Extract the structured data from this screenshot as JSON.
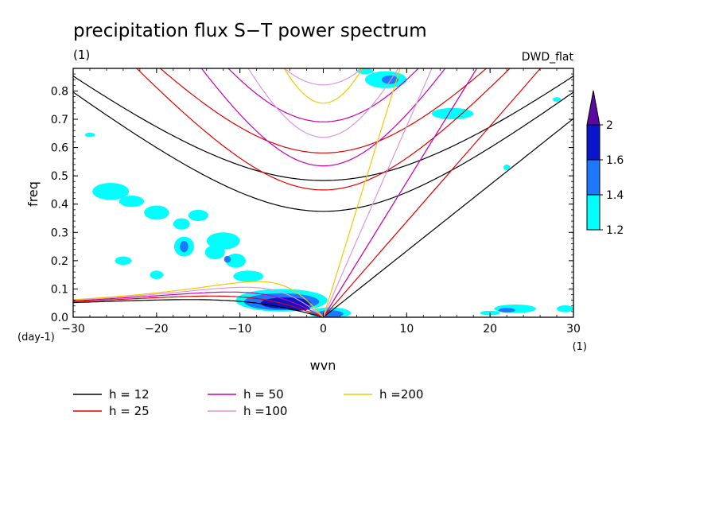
{
  "chart_data": {
    "type": "contour",
    "title": "precipitation flux S−T power spectrum",
    "subtitle_left": "(1)",
    "subtitle_right": "DWD_flat",
    "xlabel": "wvn",
    "ylabel": "freq",
    "x_unit": "(1)",
    "y_unit": "(day-1)",
    "xlim": [
      -30,
      30
    ],
    "ylim": [
      0,
      0.88
    ],
    "x_ticks": [
      "-30",
      "-20",
      "-10",
      "0",
      "10",
      "20",
      "30"
    ],
    "y_ticks": [
      "0.0",
      "0.1",
      "0.2",
      "0.3",
      "0.4",
      "0.5",
      "0.6",
      "0.7",
      "0.8"
    ],
    "colorbar": {
      "levels": [
        "1.2",
        "1.4",
        "1.6",
        "2"
      ],
      "colors": [
        "#00ffff",
        "#1e78ff",
        "#0a14c8",
        "#5a0aa0"
      ]
    },
    "blobs": [
      {
        "x": -28,
        "y": 0.645,
        "rx": 0.6,
        "ry": 0.008,
        "level": 0
      },
      {
        "x": -25.5,
        "y": 0.445,
        "rx": 2.2,
        "ry": 0.03,
        "level": 0
      },
      {
        "x": -23,
        "y": 0.41,
        "rx": 1.5,
        "ry": 0.02,
        "level": 0
      },
      {
        "x": -20,
        "y": 0.37,
        "rx": 1.5,
        "ry": 0.025,
        "level": 0
      },
      {
        "x": -15,
        "y": 0.36,
        "rx": 1.2,
        "ry": 0.02,
        "level": 0
      },
      {
        "x": -17,
        "y": 0.33,
        "rx": 1.0,
        "ry": 0.02,
        "level": 0
      },
      {
        "x": -12,
        "y": 0.27,
        "rx": 2.0,
        "ry": 0.03,
        "level": 0
      },
      {
        "x": -16.7,
        "y": 0.25,
        "rx": 1.2,
        "ry": 0.035,
        "level": 0
      },
      {
        "x": -16.7,
        "y": 0.25,
        "rx": 0.5,
        "ry": 0.02,
        "level": 1
      },
      {
        "x": -13,
        "y": 0.23,
        "rx": 1.2,
        "ry": 0.025,
        "level": 0
      },
      {
        "x": -10.5,
        "y": 0.2,
        "rx": 1.2,
        "ry": 0.025,
        "level": 0
      },
      {
        "x": -11.5,
        "y": 0.205,
        "rx": 0.4,
        "ry": 0.012,
        "level": 1
      },
      {
        "x": -9,
        "y": 0.145,
        "rx": 1.8,
        "ry": 0.02,
        "level": 0
      },
      {
        "x": -24,
        "y": 0.2,
        "rx": 1.0,
        "ry": 0.015,
        "level": 0
      },
      {
        "x": -20,
        "y": 0.15,
        "rx": 0.8,
        "ry": 0.015,
        "level": 0
      },
      {
        "x": -5,
        "y": 0.06,
        "rx": 5.5,
        "ry": 0.04,
        "level": 0
      },
      {
        "x": -5,
        "y": 0.055,
        "rx": 4.5,
        "ry": 0.03,
        "level": 1
      },
      {
        "x": -4.5,
        "y": 0.05,
        "rx": 3.0,
        "ry": 0.02,
        "level": 2
      },
      {
        "x": -3,
        "y": 0.035,
        "rx": 1.5,
        "ry": 0.012,
        "level": 2
      },
      {
        "x": 0.8,
        "y": 0.015,
        "rx": 2.5,
        "ry": 0.02,
        "level": 0
      },
      {
        "x": 0.8,
        "y": 0.012,
        "rx": 1.6,
        "ry": 0.013,
        "level": 1
      },
      {
        "x": 7.5,
        "y": 0.84,
        "rx": 2.5,
        "ry": 0.03,
        "level": 0
      },
      {
        "x": 8,
        "y": 0.84,
        "rx": 1.0,
        "ry": 0.015,
        "level": 1
      },
      {
        "x": 5,
        "y": 0.87,
        "rx": 1.0,
        "ry": 0.01,
        "level": 0
      },
      {
        "x": 15.5,
        "y": 0.72,
        "rx": 2.5,
        "ry": 0.02,
        "level": 0
      },
      {
        "x": 22,
        "y": 0.53,
        "rx": 0.4,
        "ry": 0.01,
        "level": 0
      },
      {
        "x": 28,
        "y": 0.77,
        "rx": 0.5,
        "ry": 0.008,
        "level": 0
      },
      {
        "x": 23,
        "y": 0.03,
        "rx": 2.5,
        "ry": 0.015,
        "level": 0
      },
      {
        "x": 22,
        "y": 0.025,
        "rx": 1.0,
        "ry": 0.008,
        "level": 1
      },
      {
        "x": 29,
        "y": 0.03,
        "rx": 1.0,
        "ry": 0.012,
        "level": 0
      },
      {
        "x": 20,
        "y": 0.015,
        "rx": 1.2,
        "ry": 0.008,
        "level": 0
      }
    ],
    "series": [
      {
        "name": "h = 12",
        "h": 12,
        "color": "#000000"
      },
      {
        "name": "h = 25",
        "h": 25,
        "color": "#e00000"
      },
      {
        "name": "h = 50",
        "h": 50,
        "color": "#c800b4"
      },
      {
        "name": "h =100",
        "h": 100,
        "color": "#dc96dc"
      },
      {
        "name": "h =200",
        "h": 200,
        "color": "#f0c800"
      }
    ]
  }
}
